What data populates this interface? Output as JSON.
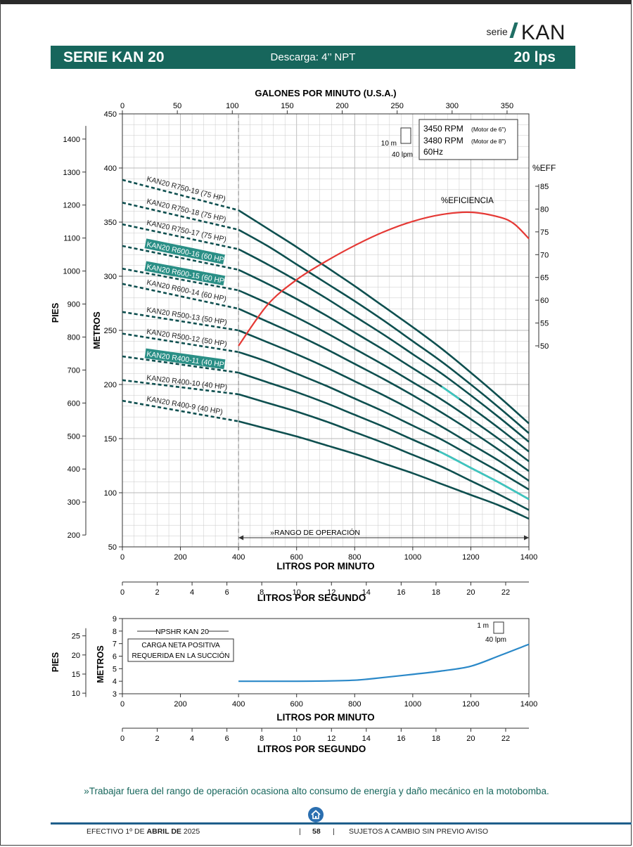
{
  "header": {
    "serie_label": "serie",
    "serie_name": "KAN",
    "banner_left": "SERIE KAN 20",
    "banner_center": "Descarga: 4’’ NPT",
    "banner_right": "20 lps",
    "accent_color": "#17665c"
  },
  "chart_data": [
    {
      "type": "line",
      "title": "",
      "xlabel": "LITROS POR MINUTO",
      "x_secondary_label": "GALONES POR MINUTO (U.S.A.)",
      "x_tertiary_label": "LITROS POR SEGUNDO",
      "ylabel": "METROS",
      "y_secondary_label": "PIES",
      "y_right_label": "%EFF",
      "xlim": [
        0,
        1400
      ],
      "ylim": [
        50,
        450
      ],
      "eff_lim": [
        50,
        85
      ],
      "x_ticks": [
        "0",
        "200",
        "400",
        "600",
        "800",
        "1000",
        "1200",
        "1400"
      ],
      "gpm_ticks": [
        "0",
        "50",
        "100",
        "150",
        "200",
        "250",
        "300",
        "350"
      ],
      "lps_ticks": [
        "0",
        "2",
        "4",
        "6",
        "8",
        "10",
        "12",
        "14",
        "16",
        "18",
        "20",
        "22"
      ],
      "metros_ticks": [
        "50",
        "100",
        "150",
        "200",
        "250",
        "300",
        "350",
        "400",
        "450"
      ],
      "pies_ticks": [
        "200",
        "300",
        "400",
        "500",
        "600",
        "700",
        "800",
        "900",
        "1000",
        "1100",
        "1200",
        "1300",
        "1400"
      ],
      "eff_ticks": [
        "50",
        "55",
        "60",
        "65",
        "70",
        "75",
        "80",
        "85"
      ],
      "grid": true,
      "legend_box": [
        "3450 RPM",
        "(Motor de 6\")",
        "3480 RPM",
        "(Motor de 8\")",
        "60Hz"
      ],
      "scale_box": {
        "v": "10 m",
        "h": "40 lpm"
      },
      "operating_range": {
        "label": "»RANGO DE OPERACIÓN",
        "from": 400,
        "to": 1400
      },
      "efficiency": {
        "label": "%EFICIENCIA",
        "color": "#e53935",
        "x": [
          400,
          500,
          600,
          700,
          800,
          900,
          1000,
          1100,
          1200,
          1300,
          1350,
          1400
        ],
        "values": [
          50,
          59,
          64.5,
          68.5,
          72,
          75,
          77.3,
          78.8,
          79.3,
          78.2,
          76.7,
          73.5
        ]
      },
      "series_color": "#0e4f4f",
      "series": [
        {
          "name": "KAN20 R750-19 (75 HP)",
          "highlight": false,
          "dashed": {
            "x": [
              0,
              400
            ],
            "values": [
              389,
              361
            ]
          },
          "x": [
            400,
            500,
            600,
            700,
            800,
            900,
            1000,
            1100,
            1200,
            1300,
            1400
          ],
          "values": [
            361,
            344,
            327,
            309,
            291,
            272,
            253,
            233,
            211,
            188,
            164
          ]
        },
        {
          "name": "KAN20 R750-18 (75 HP)",
          "highlight": false,
          "dashed": {
            "x": [
              0,
              400
            ],
            "values": [
              368,
              343
            ]
          },
          "x": [
            400,
            500,
            600,
            700,
            800,
            900,
            1000,
            1100,
            1200,
            1300,
            1400
          ],
          "values": [
            343,
            328,
            311,
            294,
            277,
            259,
            240,
            221,
            200,
            178,
            155
          ]
        },
        {
          "name": "KAN20 R750-17 (75 HP)",
          "highlight": false,
          "dashed": {
            "x": [
              0,
              400
            ],
            "values": [
              348,
              325
            ]
          },
          "x": [
            400,
            500,
            600,
            700,
            800,
            900,
            1000,
            1100,
            1200,
            1300,
            1400
          ],
          "values": [
            325,
            311,
            296,
            280,
            263,
            246,
            228,
            210,
            190,
            169,
            147
          ]
        },
        {
          "name": "KAN20 R600-16 (60 HP)",
          "highlight": true,
          "dashed": {
            "x": [
              0,
              400
            ],
            "values": [
              328,
              306
            ]
          },
          "x": [
            400,
            500,
            600,
            700,
            800,
            900,
            1000,
            1100,
            1200,
            1300,
            1400
          ],
          "values": [
            306,
            293,
            279,
            264,
            248,
            232,
            215,
            198,
            179,
            159,
            138
          ]
        },
        {
          "name": "KAN20 R600-15 (60 HP)",
          "highlight": true,
          "dashed": {
            "x": [
              0,
              400
            ],
            "values": [
              307,
              287
            ]
          },
          "x": [
            400,
            500,
            600,
            700,
            800,
            900,
            1000,
            1100,
            1200,
            1300,
            1400
          ],
          "values": [
            287,
            275,
            262,
            248,
            233,
            218,
            202,
            186,
            168,
            149,
            129
          ]
        },
        {
          "name": "KAN20 R600-14 (60 HP)",
          "highlight": false,
          "dashed": {
            "x": [
              0,
              400
            ],
            "values": [
              293,
              270
            ]
          },
          "x": [
            400,
            500,
            600,
            700,
            800,
            900,
            1000,
            1100,
            1200,
            1300,
            1400
          ],
          "values": [
            270,
            258,
            246,
            233,
            219,
            205,
            190,
            174,
            157,
            139,
            120
          ]
        },
        {
          "name": "KAN20 R500-13 (50 HP)",
          "highlight": false,
          "dashed": {
            "x": [
              0,
              400
            ],
            "values": [
              267,
              250
            ]
          },
          "x": [
            400,
            500,
            600,
            700,
            800,
            900,
            1000,
            1100,
            1200,
            1300,
            1400
          ],
          "values": [
            250,
            239,
            228,
            216,
            203,
            190,
            176,
            161,
            145,
            129,
            111
          ]
        },
        {
          "name": "KAN20 R500-12 (50 HP)",
          "highlight": false,
          "dashed": {
            "x": [
              0,
              400
            ],
            "values": [
              247,
              230
            ]
          },
          "x": [
            400,
            500,
            600,
            700,
            800,
            900,
            1000,
            1100,
            1200,
            1300,
            1400
          ],
          "values": [
            230,
            221,
            210,
            199,
            187,
            175,
            162,
            149,
            134,
            119,
            103
          ]
        },
        {
          "name": "KAN20 R400-11 (40 HP)",
          "highlight": true,
          "dashed": {
            "x": [
              0,
              400
            ],
            "values": [
              226,
              211
            ]
          },
          "x": [
            400,
            500,
            600,
            700,
            800,
            900,
            1000,
            1100,
            1200,
            1300,
            1400
          ],
          "values": [
            211,
            202,
            193,
            183,
            172,
            161,
            149,
            137,
            123,
            109,
            94
          ]
        },
        {
          "name": "KAN20 R400-10 (40 HP)",
          "highlight": false,
          "dashed": {
            "x": [
              0,
              400
            ],
            "values": [
              204,
              191
            ]
          },
          "x": [
            400,
            500,
            600,
            700,
            800,
            900,
            1000,
            1100,
            1200,
            1300,
            1400
          ],
          "values": [
            191,
            183,
            175,
            166,
            156,
            146,
            135,
            124,
            111,
            98,
            84
          ]
        },
        {
          "name": "KAN20 R400-9 (40 HP)",
          "highlight": false,
          "dashed": {
            "x": [
              0,
              400
            ],
            "values": [
              185,
              166
            ]
          },
          "x": [
            400,
            500,
            600,
            700,
            800,
            900,
            1000,
            1100,
            1200,
            1300,
            1400
          ],
          "values": [
            166,
            159,
            152,
            144,
            136,
            127,
            118,
            108,
            98,
            88,
            76
          ]
        }
      ]
    },
    {
      "type": "line",
      "title": "",
      "xlabel": "LITROS POR MINUTO",
      "x_tertiary_label": "LITROS POR SEGUNDO",
      "ylabel": "METROS",
      "y_secondary_label": "PIES",
      "xlim": [
        0,
        1400
      ],
      "ylim": [
        3,
        9
      ],
      "x_ticks": [
        "0",
        "200",
        "400",
        "600",
        "800",
        "1000",
        "1200",
        "1400"
      ],
      "lps_ticks": [
        "0",
        "2",
        "4",
        "6",
        "8",
        "10",
        "12",
        "14",
        "16",
        "18",
        "20",
        "22"
      ],
      "metros_ticks": [
        "3",
        "4",
        "5",
        "6",
        "7",
        "8",
        "9"
      ],
      "pies_ticks": [
        "10",
        "15",
        "20",
        "25"
      ],
      "grid": false,
      "scale_box": {
        "v": "1 m",
        "h": "40 lpm"
      },
      "label_box": "NPSHR KAN 20",
      "desc_box": [
        "CARGA NETA POSITIVA",
        "REQUERIDA EN LA SUCCIÓN"
      ],
      "series": [
        {
          "name": "NPSHR KAN 20",
          "color": "#2a88c8",
          "x": [
            400,
            500,
            600,
            700,
            800,
            850,
            900,
            1000,
            1100,
            1200,
            1300,
            1400
          ],
          "values": [
            4.0,
            4.0,
            4.0,
            4.02,
            4.08,
            4.18,
            4.3,
            4.55,
            4.82,
            5.2,
            6.05,
            6.95
          ]
        }
      ]
    }
  ],
  "note": "»Trabajar fuera del rango de operación ocasiona alto consumo de energía y daño mecánico en la motobomba.",
  "footer": {
    "effective_prefix": "EFECTIVO 1º DE",
    "effective_date": "ABRIL DE",
    "effective_year": "2025",
    "page_number": "58",
    "disclaimer": "SUJETOS A CAMBIO SIN PREVIO AVISO"
  }
}
